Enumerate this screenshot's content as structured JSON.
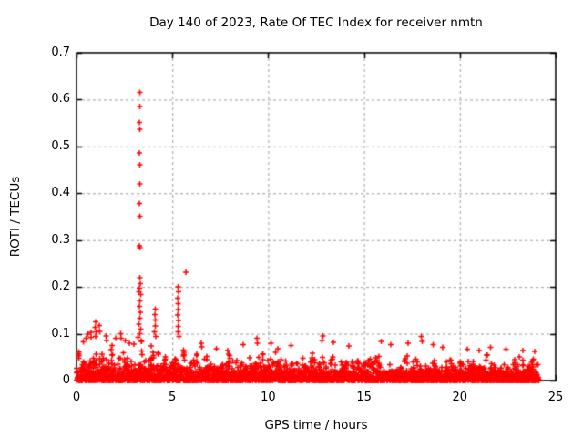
{
  "chart_data": {
    "type": "scatter",
    "title": "Day 140 of 2023, Rate Of TEC Index for receiver nmtn",
    "xlabel": "GPS time / hours",
    "ylabel": "ROTI / TECUs",
    "xlim": [
      0,
      25
    ],
    "ylim": [
      0,
      0.7
    ],
    "xticks": [
      0,
      5,
      10,
      15,
      20,
      25
    ],
    "yticks": [
      0,
      0.1,
      0.2,
      0.3,
      0.4,
      0.5,
      0.6,
      0.7
    ],
    "grid": {
      "show": true,
      "color": "#9e9e9e",
      "dash": [
        3,
        3
      ]
    },
    "border_color": "#000000",
    "legend": "none",
    "marker": {
      "symbol": "plus",
      "color": "#ff0000",
      "size": 7,
      "stroke": 1.5
    },
    "series": [
      {
        "name": "ROTI",
        "outliers": [
          [
            3.3,
            0.615
          ],
          [
            3.3,
            0.585
          ],
          [
            3.28,
            0.551
          ],
          [
            3.31,
            0.537
          ],
          [
            3.29,
            0.486
          ],
          [
            3.31,
            0.461
          ],
          [
            3.3,
            0.42
          ],
          [
            3.28,
            0.378
          ],
          [
            3.3,
            0.351
          ],
          [
            3.27,
            0.288
          ],
          [
            3.31,
            0.284
          ],
          [
            3.3,
            0.22
          ],
          [
            3.33,
            0.207
          ],
          [
            3.29,
            0.197
          ],
          [
            3.25,
            0.19
          ],
          [
            3.34,
            0.184
          ],
          [
            3.3,
            0.17
          ],
          [
            3.28,
            0.158
          ],
          [
            3.32,
            0.146
          ],
          [
            3.3,
            0.133
          ],
          [
            3.26,
            0.121
          ],
          [
            3.35,
            0.11
          ],
          [
            3.3,
            0.1
          ],
          [
            3.22,
            0.092
          ],
          [
            3.38,
            0.085
          ],
          [
            5.7,
            0.231
          ],
          [
            5.3,
            0.2
          ],
          [
            5.33,
            0.19
          ],
          [
            5.28,
            0.176
          ],
          [
            5.31,
            0.164
          ],
          [
            5.3,
            0.152
          ],
          [
            5.27,
            0.14
          ],
          [
            5.32,
            0.128
          ],
          [
            5.3,
            0.116
          ],
          [
            5.29,
            0.104
          ],
          [
            5.34,
            0.094
          ],
          [
            4.1,
            0.153
          ],
          [
            4.08,
            0.141
          ],
          [
            4.12,
            0.129
          ],
          [
            4.1,
            0.117
          ],
          [
            4.06,
            0.104
          ],
          [
            4.13,
            0.094
          ],
          [
            1.0,
            0.125
          ],
          [
            0.98,
            0.114
          ],
          [
            1.02,
            0.104
          ],
          [
            1.0,
            0.094
          ],
          [
            1.2,
            0.118
          ],
          [
            1.22,
            0.105
          ],
          [
            0.75,
            0.103
          ],
          [
            0.77,
            0.092
          ],
          [
            0.6,
            0.099
          ],
          [
            0.5,
            0.09
          ],
          [
            0.35,
            0.083
          ],
          [
            1.55,
            0.095
          ],
          [
            1.57,
            0.086
          ],
          [
            2.05,
            0.09
          ],
          [
            2.3,
            0.1
          ],
          [
            2.32,
            0.09
          ],
          [
            2.55,
            0.086
          ],
          [
            2.75,
            0.08
          ],
          [
            3.0,
            0.078
          ],
          [
            6.5,
            0.08
          ],
          [
            6.53,
            0.072
          ],
          [
            7.3,
            0.068
          ],
          [
            7.9,
            0.064
          ],
          [
            8.7,
            0.077
          ],
          [
            9.4,
            0.09
          ],
          [
            9.43,
            0.08
          ],
          [
            10.15,
            0.08
          ],
          [
            10.5,
            0.068
          ],
          [
            11.2,
            0.075
          ],
          [
            12.8,
            0.086
          ],
          [
            12.85,
            0.095
          ],
          [
            13.4,
            0.082
          ],
          [
            14.2,
            0.074
          ],
          [
            15.9,
            0.084
          ],
          [
            16.4,
            0.077
          ],
          [
            17.3,
            0.08
          ],
          [
            18.0,
            0.094
          ],
          [
            18.04,
            0.084
          ],
          [
            18.6,
            0.077
          ],
          [
            19.1,
            0.071
          ],
          [
            20.4,
            0.067
          ],
          [
            21.0,
            0.064
          ],
          [
            21.6,
            0.071
          ],
          [
            22.4,
            0.067
          ],
          [
            23.3,
            0.064
          ],
          [
            23.9,
            0.062
          ]
        ],
        "noise_band": {
          "x_start": 0.03,
          "x_end": 24.1,
          "column_width": 0.06,
          "points_per_column": 8,
          "seed": 1404,
          "height_bias": 2.0,
          "column_bias": 2.2,
          "hourly_max": [
            0.07,
            0.085,
            0.075,
            0.09,
            0.075,
            0.08,
            0.07,
            0.062,
            0.062,
            0.068,
            0.062,
            0.06,
            0.068,
            0.062,
            0.058,
            0.062,
            0.058,
            0.062,
            0.062,
            0.055,
            0.058,
            0.058,
            0.055,
            0.058,
            0.055
          ]
        }
      }
    ]
  }
}
